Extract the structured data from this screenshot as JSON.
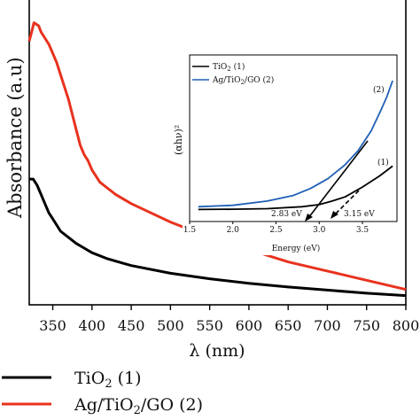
{
  "chart_data": [
    {
      "type": "line",
      "title": "",
      "xlabel": "λ (nm)",
      "ylabel": "Absorbance (a.u)",
      "xlim": [
        320,
        800
      ],
      "ylim": [
        0,
        1
      ],
      "x_ticks": [
        350,
        400,
        450,
        500,
        550,
        600,
        650,
        700,
        750,
        800
      ],
      "y_ticks_shown": false,
      "grid": false,
      "legend_placement": "bottom, below x-axis",
      "series": [
        {
          "name": "TiO2 (1)",
          "color": "#000000",
          "x": [
            320,
            325,
            330,
            335,
            340,
            345,
            350,
            360,
            370,
            380,
            390,
            400,
            420,
            450,
            500,
            550,
            600,
            650,
            700,
            750,
            800
          ],
          "y": [
            0.41,
            0.41,
            0.39,
            0.36,
            0.33,
            0.3,
            0.28,
            0.24,
            0.22,
            0.2,
            0.185,
            0.17,
            0.15,
            0.128,
            0.103,
            0.085,
            0.07,
            0.058,
            0.048,
            0.038,
            0.03
          ]
        },
        {
          "name": "Ag/TiO2/GO (2)",
          "color": "#e8321e",
          "x": [
            320,
            323,
            326,
            329,
            332,
            335,
            340,
            345,
            350,
            355,
            360,
            370,
            380,
            385,
            390,
            395,
            400,
            405,
            410,
            420,
            430,
            450,
            475,
            500,
            550,
            600,
            650,
            700,
            750,
            800
          ],
          "y": [
            0.86,
            0.89,
            0.92,
            0.915,
            0.91,
            0.89,
            0.87,
            0.85,
            0.82,
            0.79,
            0.75,
            0.67,
            0.57,
            0.52,
            0.49,
            0.47,
            0.44,
            0.42,
            0.4,
            0.38,
            0.36,
            0.33,
            0.3,
            0.27,
            0.22,
            0.18,
            0.14,
            0.11,
            0.08,
            0.05
          ]
        }
      ]
    },
    {
      "type": "line",
      "title": "",
      "xlabel": "Energy (eV)",
      "ylabel": "(αhν)²",
      "xlim": [
        1.5,
        3.9
      ],
      "ylim": [
        0,
        1
      ],
      "x_ticks": [
        1.5,
        2.0,
        2.5,
        3.0,
        3.5
      ],
      "grid": false,
      "legend_placement": "top-left",
      "series": [
        {
          "name": "TiO2 (1)",
          "color": "#000000",
          "x": [
            1.6,
            2.0,
            2.4,
            2.8,
            3.0,
            3.15,
            3.3,
            3.5,
            3.7,
            3.85
          ],
          "y": [
            0.01,
            0.012,
            0.016,
            0.03,
            0.045,
            0.07,
            0.1,
            0.17,
            0.25,
            0.32
          ]
        },
        {
          "name": "Ag/TiO2/GO (2)",
          "color": "#1f5fb5",
          "x": [
            1.6,
            2.0,
            2.4,
            2.7,
            2.9,
            3.1,
            3.3,
            3.45,
            3.6,
            3.7,
            3.78,
            3.85
          ],
          "y": [
            0.03,
            0.04,
            0.07,
            0.11,
            0.16,
            0.23,
            0.33,
            0.43,
            0.57,
            0.7,
            0.81,
            0.93
          ]
        }
      ],
      "series_labels": [
        "(1)",
        "(2)"
      ],
      "annotations": [
        "2.83 eV",
        "3.15 eV"
      ],
      "tangent_intercepts_eV": [
        2.83,
        3.15
      ]
    }
  ]
}
